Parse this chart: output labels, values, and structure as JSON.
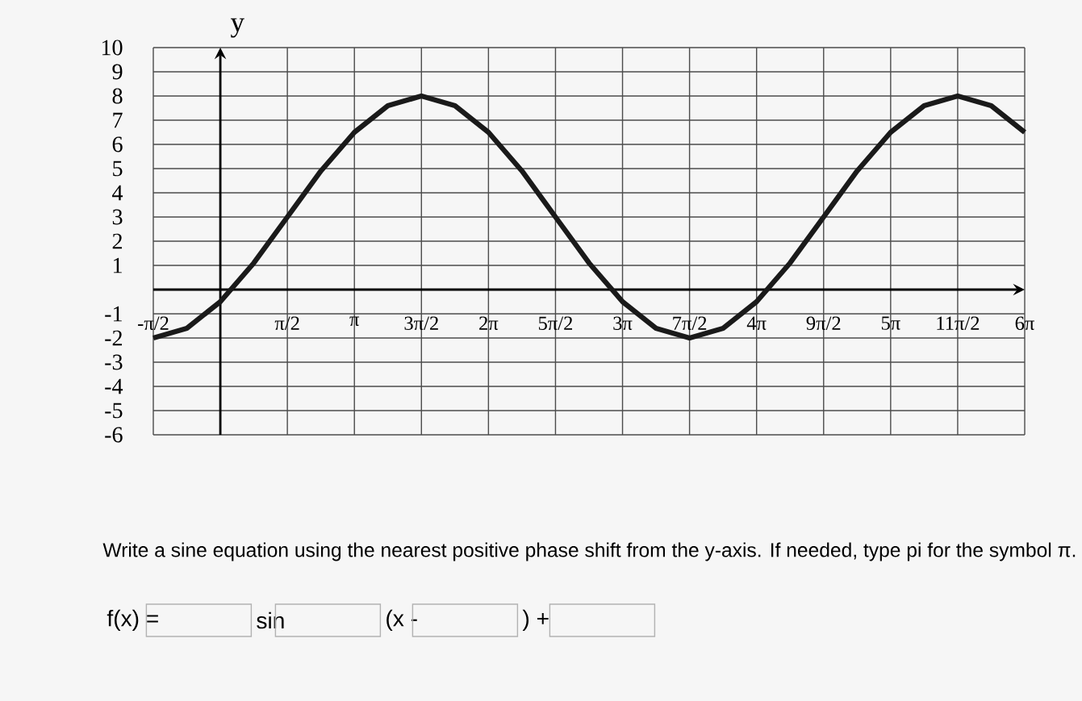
{
  "chart_data": {
    "type": "line",
    "ylabel": "y",
    "x": [
      -1.5708,
      -0.7854,
      0,
      0.7854,
      1.5708,
      2.3562,
      3.1416,
      3.927,
      4.7124,
      5.4978,
      6.2832,
      7.0686,
      7.854,
      8.6394,
      9.4248,
      10.2102,
      10.9956,
      11.781,
      12.5664,
      13.3518,
      14.1372,
      14.9226,
      15.708,
      16.4934,
      17.2788,
      18.0642,
      18.8496
    ],
    "series": [
      {
        "color": "#1a1a1a",
        "values": [
          -2,
          -1.6,
          -0.5,
          1.1,
          3,
          4.9,
          6.5,
          7.6,
          8,
          7.6,
          6.5,
          4.9,
          3,
          1.1,
          -0.5,
          -1.6,
          -2,
          -1.6,
          -0.5,
          1.1,
          3,
          4.9,
          6.5,
          7.6,
          8,
          7.6,
          6.5
        ]
      }
    ],
    "xlim": [
      -1.5708,
      18.8496
    ],
    "ylim": [
      -6,
      10
    ],
    "xticks": [
      {
        "value": -1.5708,
        "label": "-π/2"
      },
      {
        "value": 1.5708,
        "label": "π/2"
      },
      {
        "value": 3.1416,
        "label": "π"
      },
      {
        "value": 4.7124,
        "label": "3π/2"
      },
      {
        "value": 6.2832,
        "label": "2π"
      },
      {
        "value": 7.854,
        "label": "5π/2"
      },
      {
        "value": 9.4248,
        "label": "3π"
      },
      {
        "value": 10.9956,
        "label": "7π/2"
      },
      {
        "value": 12.5664,
        "label": "4π"
      },
      {
        "value": 14.1372,
        "label": "9π/2"
      },
      {
        "value": 15.708,
        "label": "5π"
      },
      {
        "value": 17.2788,
        "label": "11π/2"
      },
      {
        "value": 18.8496,
        "label": "6π"
      }
    ],
    "yticks": [
      -6,
      -5,
      -4,
      -3,
      -2,
      -1,
      1,
      2,
      3,
      4,
      5,
      6,
      7,
      8,
      9,
      10
    ],
    "grid": true,
    "marker": "none",
    "line_style": "solid",
    "annotations": [
      "Write a sine equation using the nearest positive phase shift from the y-axis. If needed, type pi for the symbol π.",
      "f(x) =",
      "sin",
      "(x -",
      ") +"
    ]
  }
}
